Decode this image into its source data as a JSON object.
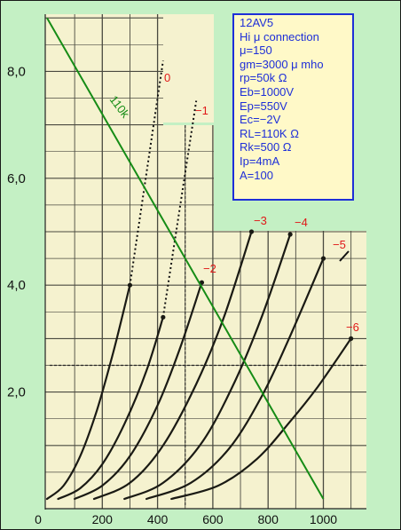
{
  "chart_data": {
    "type": "line",
    "title": "",
    "xlabel": "",
    "ylabel": "",
    "xlim": [
      0,
      1150
    ],
    "ylim": [
      0,
      9.2
    ],
    "x_ticks": [
      "0",
      "200",
      "400",
      "600",
      "800",
      "1000"
    ],
    "y_ticks": [
      "2,0",
      "4,0",
      "6,0",
      "8,0"
    ],
    "grid": true,
    "colors": {
      "curves": "#1a1a14",
      "load_line": "#168c16",
      "labels": "#e01818"
    },
    "series": [
      {
        "name": "0",
        "x": [
          0,
          60,
          120,
          180,
          240,
          300
        ],
        "y": [
          0,
          0.25,
          0.8,
          1.65,
          2.75,
          4.0
        ]
      },
      {
        "name": "-1",
        "x": [
          40,
          120,
          200,
          280,
          360,
          420
        ],
        "y": [
          0,
          0.2,
          0.65,
          1.4,
          2.4,
          3.4
        ]
      },
      {
        "name": "-2",
        "x": [
          100,
          200,
          300,
          400,
          480,
          560
        ],
        "y": [
          0,
          0.25,
          0.8,
          1.75,
          2.8,
          4.05
        ]
      },
      {
        "name": "-3",
        "x": [
          170,
          300,
          420,
          540,
          640,
          740
        ],
        "y": [
          0,
          0.3,
          1.0,
          2.15,
          3.4,
          5.0
        ]
      },
      {
        "name": "-4",
        "x": [
          280,
          420,
          560,
          680,
          780,
          880
        ],
        "y": [
          0,
          0.3,
          1.05,
          2.2,
          3.45,
          4.95
        ]
      },
      {
        "name": "-5",
        "x": [
          360,
          520,
          660,
          780,
          880,
          1000
        ],
        "y": [
          0,
          0.3,
          0.95,
          1.95,
          3.05,
          4.5
        ]
      },
      {
        "name": "-6",
        "x": [
          450,
          620,
          760,
          880,
          980,
          1100
        ],
        "y": [
          0,
          0.25,
          0.75,
          1.45,
          2.1,
          3.0
        ]
      }
    ],
    "projections": [
      {
        "from_curve": "0",
        "x": [
          300,
          420
        ],
        "y": [
          4.0,
          8.2
        ]
      },
      {
        "from_curve": "-1",
        "x": [
          420,
          540
        ],
        "y": [
          3.4,
          7.45
        ]
      }
    ],
    "load_line": {
      "name": "110k",
      "x": [
        0,
        1000
      ],
      "y": [
        9.0,
        0
      ]
    }
  },
  "labels": {
    "c0": "0",
    "c1": "−1",
    "c2": "−2",
    "c3": "−3",
    "c4": "−4",
    "c5": "−5",
    "c6": "−6",
    "load": "110k"
  },
  "info": {
    "lines": [
      "12AV5",
      "Hi μ    connection",
      " μ=150",
      "gm=3000 μ mho",
      "rp=50k Ω",
      "Eb=1000V",
      "Ep=550V",
      "Ec=−2V",
      "RL=110K Ω",
      "Rk=500 Ω",
      "Ip=4mA",
      "A=100"
    ]
  }
}
